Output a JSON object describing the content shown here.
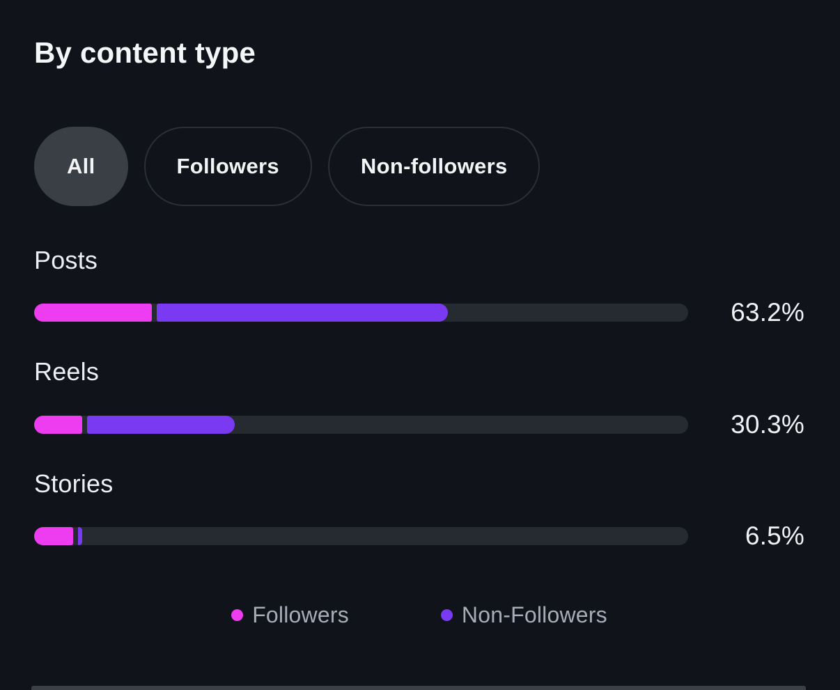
{
  "header": {
    "title": "By content type"
  },
  "filters": {
    "all": {
      "label": "All",
      "selected": true
    },
    "followers": {
      "label": "Followers",
      "selected": false
    },
    "non_followers": {
      "label": "Non-followers",
      "selected": false
    }
  },
  "chart": {
    "type": "bar",
    "unit": "%",
    "rows": [
      {
        "label": "Posts",
        "value_label": "63.2%",
        "total_pct": 63.2,
        "followers_pct": 18.0,
        "non_followers_pct": 44.5
      },
      {
        "label": "Reels",
        "value_label": "30.3%",
        "total_pct": 30.3,
        "followers_pct": 7.3,
        "non_followers_pct": 22.6
      },
      {
        "label": "Stories",
        "value_label": "6.5%",
        "total_pct": 6.5,
        "followers_pct": 6.0,
        "non_followers_pct": 0.6
      }
    ]
  },
  "legend": {
    "followers": {
      "label": "Followers",
      "color": "#ee3cf0"
    },
    "non_followers": {
      "label": "Non-Followers",
      "color": "#7a3af2"
    }
  },
  "colors": {
    "background": "#10141a",
    "track": "#262b31",
    "followers": "#ee3cf0",
    "non_followers": "#7a3af2",
    "selected_pill": "#3a3e45",
    "pill_border": "#2b2f36",
    "legend_text": "#a6acb8",
    "text_primary": "#f4f6f7"
  }
}
